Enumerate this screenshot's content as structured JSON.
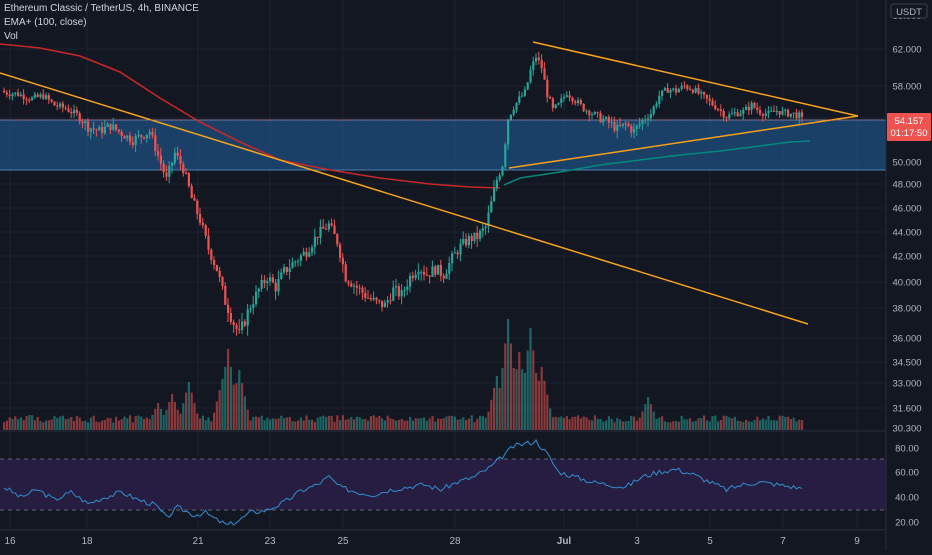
{
  "header": {
    "title": "Ethereum Classic / TetherUS, 4h, BINANCE",
    "indicator_label": "EMA+ (100, close)",
    "volume_label": "Vol",
    "currency": "USDT"
  },
  "price_axis": {
    "ticks": [
      "62.000",
      "58.000",
      "54.000",
      "50.000",
      "48.000",
      "46.000",
      "44.000",
      "42.000",
      "40.000",
      "38.000",
      "36.000",
      "34.500",
      "33.000",
      "31.600",
      "30.300"
    ],
    "current_price": "54.157",
    "countdown": "01:17:50"
  },
  "rsi_axis": {
    "ticks": [
      "80.00",
      "60.00",
      "40.00",
      "20.00"
    ]
  },
  "date_axis": {
    "ticks": [
      "16",
      "18",
      "21",
      "23",
      "25",
      "28",
      "Jul",
      "3",
      "5",
      "7",
      "9"
    ]
  },
  "colors": {
    "background": "#131722",
    "up": "#26a69a",
    "down": "#ef5350",
    "ema": "#00897b",
    "ma_red": "#c62828",
    "trendline": "#f7a21b",
    "zone": "#1e4f80",
    "rsi_line": "#2f86c6",
    "rsi_band": "#2a1f45"
  },
  "chart_data": {
    "type": "candlestick",
    "timeframe": "4h",
    "pair": "ETC/USDT",
    "x_axis_dates": [
      "16",
      "18",
      "21",
      "23",
      "25",
      "28",
      "Jul",
      "3",
      "5",
      "7",
      "9"
    ],
    "y_range": [
      30.3,
      64.0
    ],
    "current_price": 54.157,
    "ema100_approx": [
      [
        49.5,
        47.4
      ],
      [
        52.0,
        49.5
      ],
      [
        80,
        52.9
      ]
    ],
    "support_zone": [
      49.4,
      54.3
    ],
    "close_path": [
      [
        0,
        57.2
      ],
      [
        5,
        57.0
      ],
      [
        10,
        56.4
      ],
      [
        14,
        56.8
      ],
      [
        18,
        55.6
      ],
      [
        22,
        55.2
      ],
      [
        26,
        54.4
      ],
      [
        30,
        53.2
      ],
      [
        34,
        52.8
      ],
      [
        38,
        53.3
      ],
      [
        42,
        52.6
      ],
      [
        46,
        52.0
      ],
      [
        49,
        52.4
      ],
      [
        52,
        52.8
      ],
      [
        55,
        50.6
      ],
      [
        58,
        48.4
      ],
      [
        61,
        50.8
      ],
      [
        64,
        49.4
      ],
      [
        67,
        46.8
      ],
      [
        70,
        45.0
      ],
      [
        73,
        42.6
      ],
      [
        76,
        41.0
      ],
      [
        79,
        38.5
      ],
      [
        82,
        37.0
      ],
      [
        84,
        36.2
      ],
      [
        86,
        37.2
      ],
      [
        88,
        38.2
      ],
      [
        91,
        39.4
      ],
      [
        94,
        40.4
      ],
      [
        97,
        39.6
      ],
      [
        100,
        40.8
      ],
      [
        104,
        41.6
      ],
      [
        108,
        42.4
      ],
      [
        112,
        43.8
      ],
      [
        116,
        44.6
      ],
      [
        119,
        43.2
      ],
      [
        122,
        40.4
      ],
      [
        126,
        39.6
      ],
      [
        130,
        38.8
      ],
      [
        133,
        38.4
      ],
      [
        136,
        38.2
      ],
      [
        139,
        39.4
      ],
      [
        142,
        39.0
      ],
      [
        145,
        40.4
      ],
      [
        148,
        41.2
      ],
      [
        151,
        40.6
      ],
      [
        154,
        41.0
      ],
      [
        157,
        40.6
      ],
      [
        160,
        41.8
      ],
      [
        163,
        42.8
      ],
      [
        166,
        43.4
      ],
      [
        169,
        43.6
      ],
      [
        172,
        44.4
      ],
      [
        174,
        46.4
      ],
      [
        176,
        48.4
      ],
      [
        178,
        49.8
      ],
      [
        180,
        54.0
      ],
      [
        182,
        55.4
      ],
      [
        184,
        56.4
      ],
      [
        186,
        57.2
      ],
      [
        188,
        59.6
      ],
      [
        190,
        61.2
      ],
      [
        192,
        60.0
      ],
      [
        194,
        57.0
      ],
      [
        196,
        55.0
      ],
      [
        198,
        55.6
      ],
      [
        201,
        57.2
      ],
      [
        204,
        56.2
      ],
      [
        207,
        55.2
      ],
      [
        210,
        54.6
      ],
      [
        213,
        54.0
      ],
      [
        216,
        53.6
      ],
      [
        219,
        53.0
      ],
      [
        222,
        53.4
      ],
      [
        225,
        52.8
      ],
      [
        228,
        53.8
      ],
      [
        231,
        54.6
      ],
      [
        234,
        56.8
      ],
      [
        237,
        57.6
      ],
      [
        240,
        57.4
      ],
      [
        243,
        58.0
      ],
      [
        246,
        57.6
      ],
      [
        249,
        56.8
      ],
      [
        252,
        56.0
      ],
      [
        255,
        55.2
      ],
      [
        258,
        54.2
      ],
      [
        261,
        54.6
      ],
      [
        264,
        54.8
      ],
      [
        267,
        55.6
      ],
      [
        270,
        54.8
      ],
      [
        273,
        54.5
      ],
      [
        276,
        54.9
      ],
      [
        279,
        54.6
      ],
      [
        282,
        54.5
      ],
      [
        285,
        54.157
      ]
    ],
    "volume_spikes": [
      [
        55,
        0.9
      ],
      [
        60,
        1.2
      ],
      [
        66,
        1.6
      ],
      [
        78,
        1.7
      ],
      [
        80,
        2.7
      ],
      [
        84,
        2.0
      ],
      [
        176,
        1.8
      ],
      [
        180,
        3.7
      ],
      [
        184,
        2.6
      ],
      [
        188,
        3.4
      ],
      [
        192,
        2.1
      ],
      [
        230,
        1.1
      ]
    ],
    "rsi": {
      "range": [
        15,
        90
      ],
      "levels": [
        30,
        70
      ],
      "path": [
        [
          0,
          48
        ],
        [
          6,
          40
        ],
        [
          12,
          46
        ],
        [
          18,
          38
        ],
        [
          24,
          44
        ],
        [
          30,
          35
        ],
        [
          36,
          40
        ],
        [
          42,
          44
        ],
        [
          48,
          38
        ],
        [
          54,
          34
        ],
        [
          58,
          24
        ],
        [
          62,
          32
        ],
        [
          68,
          26
        ],
        [
          72,
          28
        ],
        [
          76,
          22
        ],
        [
          80,
          18
        ],
        [
          84,
          22
        ],
        [
          88,
          28
        ],
        [
          94,
          30
        ],
        [
          100,
          36
        ],
        [
          106,
          45
        ],
        [
          112,
          50
        ],
        [
          116,
          56
        ],
        [
          120,
          48
        ],
        [
          126,
          44
        ],
        [
          132,
          42
        ],
        [
          138,
          46
        ],
        [
          144,
          48
        ],
        [
          150,
          50
        ],
        [
          156,
          46
        ],
        [
          162,
          52
        ],
        [
          168,
          56
        ],
        [
          174,
          64
        ],
        [
          178,
          72
        ],
        [
          182,
          80
        ],
        [
          186,
          82
        ],
        [
          190,
          84
        ],
        [
          194,
          74
        ],
        [
          198,
          60
        ],
        [
          204,
          56
        ],
        [
          210,
          52
        ],
        [
          216,
          50
        ],
        [
          222,
          48
        ],
        [
          228,
          56
        ],
        [
          234,
          60
        ],
        [
          240,
          62
        ],
        [
          246,
          58
        ],
        [
          252,
          52
        ],
        [
          258,
          46
        ],
        [
          264,
          50
        ],
        [
          270,
          52
        ],
        [
          276,
          50
        ],
        [
          282,
          48
        ],
        [
          285,
          47
        ]
      ]
    }
  }
}
